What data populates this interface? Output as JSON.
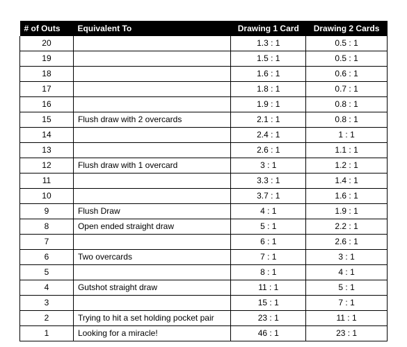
{
  "table": {
    "columns": [
      {
        "key": "outs",
        "label": "# of Outs",
        "class": "col-outs"
      },
      {
        "key": "equiv",
        "label": "Equivalent To",
        "class": "col-equiv"
      },
      {
        "key": "d1",
        "label": "Drawing 1 Card",
        "class": "col-d1"
      },
      {
        "key": "d2",
        "label": "Drawing 2 Cards",
        "class": "col-d2"
      }
    ],
    "rows": [
      {
        "outs": "20",
        "equiv": "",
        "d1": "1.3 : 1",
        "d2": "0.5 : 1"
      },
      {
        "outs": "19",
        "equiv": "",
        "d1": "1.5 : 1",
        "d2": "0.5 : 1"
      },
      {
        "outs": "18",
        "equiv": "",
        "d1": "1.6 : 1",
        "d2": "0.6 : 1"
      },
      {
        "outs": "17",
        "equiv": "",
        "d1": "1.8 : 1",
        "d2": "0.7 : 1"
      },
      {
        "outs": "16",
        "equiv": "",
        "d1": "1.9 : 1",
        "d2": "0.8 : 1"
      },
      {
        "outs": "15",
        "equiv": "Flush draw with 2 overcards",
        "d1": "2.1 : 1",
        "d2": "0.8 : 1"
      },
      {
        "outs": "14",
        "equiv": "",
        "d1": "2.4 : 1",
        "d2": "1 : 1"
      },
      {
        "outs": "13",
        "equiv": "",
        "d1": "2.6 : 1",
        "d2": "1.1 : 1"
      },
      {
        "outs": "12",
        "equiv": "Flush draw with 1 overcard",
        "d1": "3 : 1",
        "d2": "1.2 : 1"
      },
      {
        "outs": "11",
        "equiv": "",
        "d1": "3.3 : 1",
        "d2": "1.4 : 1"
      },
      {
        "outs": "10",
        "equiv": "",
        "d1": "3.7 : 1",
        "d2": "1.6 : 1"
      },
      {
        "outs": "9",
        "equiv": "Flush Draw",
        "d1": "4 : 1",
        "d2": "1.9 : 1"
      },
      {
        "outs": "8",
        "equiv": "Open ended straight draw",
        "d1": "5 : 1",
        "d2": "2.2 : 1"
      },
      {
        "outs": "7",
        "equiv": "",
        "d1": "6 : 1",
        "d2": "2.6 : 1"
      },
      {
        "outs": "6",
        "equiv": "Two overcards",
        "d1": "7 : 1",
        "d2": "3 : 1"
      },
      {
        "outs": "5",
        "equiv": "",
        "d1": "8 : 1",
        "d2": "4 : 1"
      },
      {
        "outs": "4",
        "equiv": "Gutshot straight draw",
        "d1": "11 : 1",
        "d2": "5 : 1"
      },
      {
        "outs": "3",
        "equiv": "",
        "d1": "15 : 1",
        "d2": "7 : 1"
      },
      {
        "outs": "2",
        "equiv": "Trying to hit a set holding pocket pair",
        "d1": "23 : 1",
        "d2": "11 : 1"
      },
      {
        "outs": "1",
        "equiv": "Looking for a miracle!",
        "d1": "46 : 1",
        "d2": "23 : 1"
      }
    ],
    "header_bg": "#000000",
    "header_fg": "#ffffff",
    "border_color": "#000000",
    "font_size": 12
  }
}
